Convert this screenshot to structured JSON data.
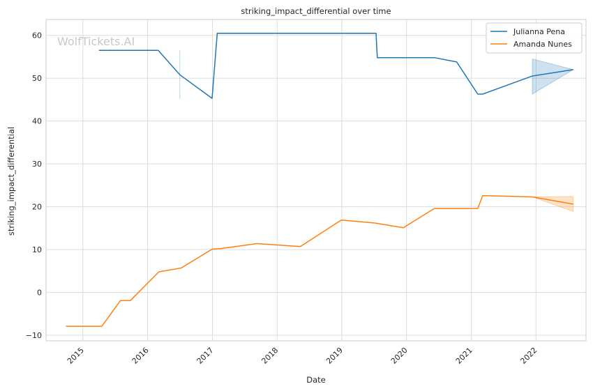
{
  "watermark": "WolfTickets.AI",
  "chart_data": {
    "type": "line",
    "title": "striking_impact_differential over time",
    "xlabel": "Date",
    "ylabel": "striking_impact_differential",
    "x_ticks": [
      "2015",
      "2016",
      "2017",
      "2018",
      "2019",
      "2020",
      "2021",
      "2022"
    ],
    "y_ticks": [
      -10,
      0,
      10,
      20,
      30,
      40,
      50,
      60
    ],
    "xlim": [
      "2014-06-07",
      "2022-10-10"
    ],
    "ylim": [
      -11.3,
      63.7
    ],
    "grid": true,
    "legend_position": "top-right",
    "series": [
      {
        "name": "Julianna Pena",
        "color": "#1f77b4",
        "points": [
          {
            "x": "2015-04-01",
            "y": 56.5
          },
          {
            "x": "2016-03-01",
            "y": 56.5
          },
          {
            "x": "2016-07-01",
            "y": 50.8
          },
          {
            "x": "2016-12-30",
            "y": 45.3
          },
          {
            "x": "2017-01-28",
            "y": 60.5
          },
          {
            "x": "2019-07-13",
            "y": 60.5
          },
          {
            "x": "2019-07-20",
            "y": 54.8
          },
          {
            "x": "2020-06-06",
            "y": 54.8
          },
          {
            "x": "2020-10-10",
            "y": 53.8
          },
          {
            "x": "2021-02-06",
            "y": 46.3
          },
          {
            "x": "2021-03-06",
            "y": 46.3
          },
          {
            "x": "2021-12-11",
            "y": 50.5
          },
          {
            "x": "2022-07-30",
            "y": 52.0
          }
        ],
        "bands": [
          {
            "x": [
              "2016-07-01",
              "2016-07-01"
            ],
            "lower": [
              45.2,
              45.2
            ],
            "upper": [
              56.6,
              56.6
            ]
          },
          {
            "x": [
              "2021-12-11",
              "2022-07-30"
            ],
            "lower": [
              46.3,
              52.0
            ],
            "upper": [
              54.5,
              52.0
            ]
          }
        ]
      },
      {
        "name": "Amanda Nunes",
        "color": "#ff7f0e",
        "points": [
          {
            "x": "2014-09-27",
            "y": -7.9
          },
          {
            "x": "2015-04-18",
            "y": -7.9
          },
          {
            "x": "2015-08-01",
            "y": -1.9
          },
          {
            "x": "2015-09-26",
            "y": -1.9
          },
          {
            "x": "2016-03-05",
            "y": 4.8
          },
          {
            "x": "2016-07-09",
            "y": 5.7
          },
          {
            "x": "2016-12-30",
            "y": 10.1
          },
          {
            "x": "2017-02-15",
            "y": 10.2
          },
          {
            "x": "2017-09-09",
            "y": 11.4
          },
          {
            "x": "2018-05-12",
            "y": 10.7
          },
          {
            "x": "2018-12-29",
            "y": 16.9
          },
          {
            "x": "2019-07-06",
            "y": 16.2
          },
          {
            "x": "2019-12-14",
            "y": 15.1
          },
          {
            "x": "2020-06-06",
            "y": 19.6
          },
          {
            "x": "2021-02-06",
            "y": 19.6
          },
          {
            "x": "2021-03-06",
            "y": 22.6
          },
          {
            "x": "2021-12-11",
            "y": 22.3
          },
          {
            "x": "2022-07-30",
            "y": 20.6
          }
        ],
        "bands": [
          {
            "x": [
              "2021-12-11",
              "2022-07-30"
            ],
            "lower": [
              22.3,
              18.9
            ],
            "upper": [
              22.3,
              22.4
            ]
          }
        ]
      }
    ]
  }
}
